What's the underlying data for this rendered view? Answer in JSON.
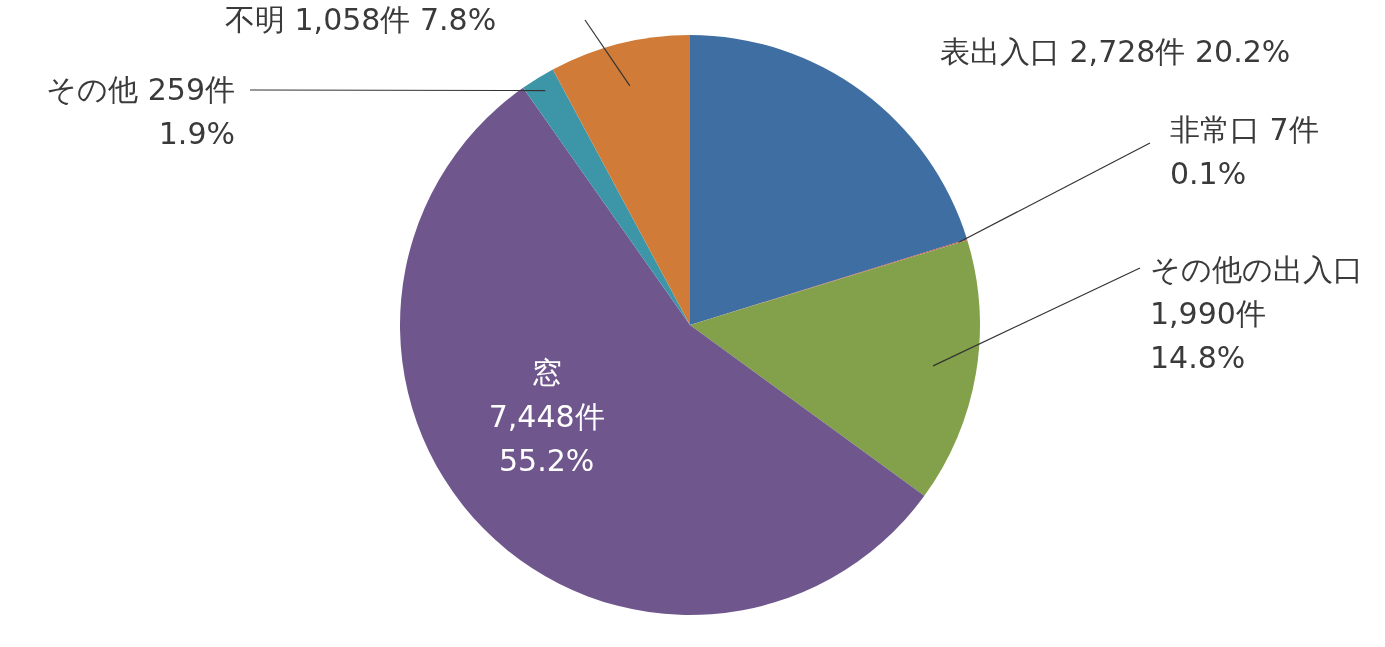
{
  "chart_data": {
    "type": "pie",
    "categories": [
      "表出入口",
      "非常口",
      "その他の出入口",
      "窓",
      "その他",
      "不明"
    ],
    "values": [
      2728,
      7,
      1990,
      7448,
      259,
      1058
    ],
    "value_labels": [
      "2,728件 20.2%",
      "7件 0.1%",
      "1,990件 14.8%",
      "7,448件 55.2%",
      "259件 1.9%",
      "1,058件 7.8%"
    ],
    "colors": [
      "#3f6ea3",
      "#c0504d",
      "#83a04b",
      "#6f578e",
      "#3d96a8",
      "#d07c38"
    ]
  }
}
